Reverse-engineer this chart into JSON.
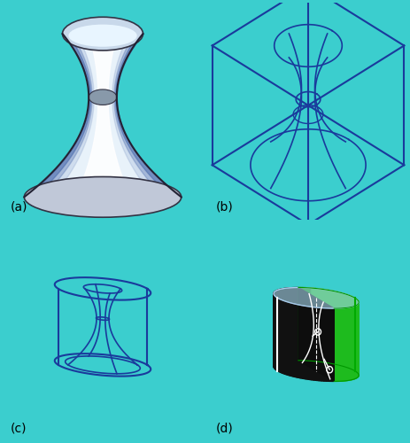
{
  "bg_color": "#3BCECE",
  "panel_a_bg": "#ffffff",
  "panel_b_bg": "#5ECECE",
  "panel_c_bg": "#5ECECE",
  "panel_d_bg": "#5ECECE",
  "blue_color": "#1A3A9C",
  "green_color": "#1EBB1E",
  "dark_color": "#1A1A1A",
  "label_a": "(a)",
  "label_b": "(b)",
  "label_c": "(c)",
  "label_d": "(d)",
  "label_fontsize": 10,
  "fig_width": 4.64,
  "fig_height": 5.0,
  "dpi": 100
}
